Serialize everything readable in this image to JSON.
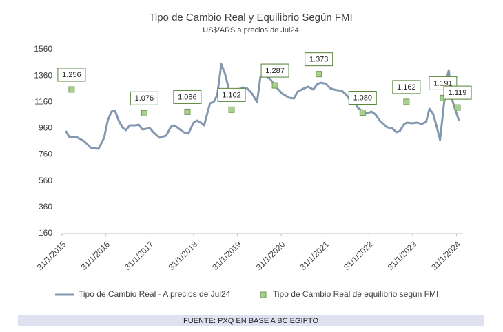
{
  "chart_data": {
    "type": "line",
    "title": "Tipo de Cambio Real y Equilibrio Según FMI",
    "subtitle": "US$/ARS a precios de Jul24",
    "source": "FUENTE: PXQ EN BASE A BC EGIPTO",
    "ylim": [
      160,
      1560
    ],
    "yticks": [
      160,
      360,
      560,
      760,
      960,
      1160,
      1360,
      1560
    ],
    "xlim": [
      -0.4,
      109.8
    ],
    "xticks": [
      {
        "value": 0,
        "label": "31/1/2015"
      },
      {
        "value": 12,
        "label": "31/1/2016"
      },
      {
        "value": 24,
        "label": "31/1/2017"
      },
      {
        "value": 36,
        "label": "31/1/2018"
      },
      {
        "value": 48,
        "label": "31/1/2019"
      },
      {
        "value": 60,
        "label": "31/1/2020"
      },
      {
        "value": 72,
        "label": "31/1/2021"
      },
      {
        "value": 84,
        "label": "31/1/2022"
      },
      {
        "value": 96,
        "label": "31/1/2023"
      },
      {
        "value": 108,
        "label": "31/1/2024"
      }
    ],
    "grid": false,
    "legend": "bottom",
    "series": [
      {
        "name": "Tipo de Cambio Real - A precios de Jul24",
        "type": "line",
        "color": "#8497b0",
        "x": [
          1,
          2,
          4,
          6,
          8,
          10,
          11.5,
          12.5,
          13.5,
          14.5,
          15.5,
          16.5,
          17.5,
          18.5,
          20,
          21,
          22,
          24,
          25,
          26.7,
          28.5,
          29.8,
          30.7,
          31.8,
          33.3,
          34.6,
          36,
          36.9,
          38,
          38.9,
          39.7,
          40.5,
          41.5,
          42.5,
          43.6,
          44.6,
          45.7,
          47.2,
          48.3,
          49.4,
          50.6,
          51.9,
          53.4,
          54.3,
          55.3,
          57,
          58.5,
          60.3,
          62.2,
          63.5,
          64.5,
          66,
          67.3,
          68.8,
          69.9,
          71,
          72.3,
          73.4,
          74.4,
          75.3,
          76.6,
          77.9,
          79.1,
          80.2,
          81.1,
          82.4,
          83.4,
          84.7,
          85.8,
          87.1,
          88,
          89,
          90.3,
          91.6,
          92.5,
          93.7,
          94.4,
          95.9,
          97.2,
          98.5,
          99.7,
          100.6,
          101.6,
          102.7,
          103.5,
          104.6,
          105.3,
          105.9,
          106.6,
          107.4,
          108.7
        ],
        "values": [
          941,
          894,
          894,
          863,
          810,
          805,
          889,
          1020,
          1088,
          1093,
          1020,
          968,
          947,
          983,
          983,
          988,
          952,
          962,
          931,
          889,
          905,
          973,
          983,
          962,
          931,
          921,
          1004,
          1020,
          1004,
          983,
          1067,
          1151,
          1161,
          1214,
          1450,
          1377,
          1256,
          1256,
          1256,
          1272,
          1266,
          1230,
          1161,
          1350,
          1371,
          1335,
          1277,
          1224,
          1193,
          1188,
          1240,
          1261,
          1277,
          1256,
          1298,
          1308,
          1298,
          1266,
          1256,
          1251,
          1246,
          1214,
          1161,
          1151,
          1114,
          1088,
          1072,
          1088,
          1067,
          1015,
          994,
          968,
          962,
          931,
          941,
          994,
          1004,
          999,
          1004,
          994,
          1010,
          1109,
          1072,
          962,
          873,
          1151,
          1335,
          1403,
          1204,
          1125,
          1020
        ]
      },
      {
        "name": "Tipo de Cambio Real de equilibrio según FMI",
        "type": "scatter",
        "color": "#a9d18e",
        "x": [
          2.6,
          22.5,
          34.3,
          46.4,
          58.3,
          70.3,
          82.3,
          94.3,
          104.3,
          108.3
        ],
        "values": [
          1256,
          1076,
          1086,
          1102,
          1287,
          1373,
          1080,
          1162,
          1191,
          1119
        ],
        "value_labels": [
          "1.256",
          "1.076",
          "1.086",
          "1.102",
          "1.287",
          "1.373",
          "1.080",
          "1.162",
          "1.191",
          "1.119"
        ]
      }
    ]
  }
}
